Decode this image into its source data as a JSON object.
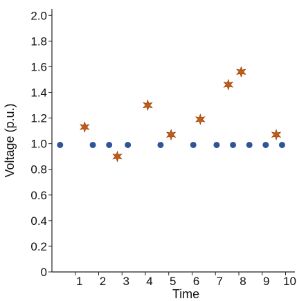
{
  "chart_data": {
    "type": "scatter",
    "xlabel": "Time",
    "ylabel": "Voltage (p.u.)",
    "xlim": [
      0,
      10.4
    ],
    "ylim": [
      0,
      2.05
    ],
    "x_ticks": [
      1,
      2,
      3,
      4,
      5,
      6,
      7,
      8,
      9,
      10
    ],
    "y_ticks": [
      0,
      0.2,
      0.4,
      0.6,
      0.8,
      1.0,
      1.2,
      1.4,
      1.6,
      1.8,
      2.0
    ],
    "y_tick_labels": [
      "0",
      "0.2",
      "0.4",
      "0.6",
      "0.8",
      "1.0",
      "1.2",
      "1.4",
      "1.6",
      "1.8",
      "2.0"
    ],
    "grid": false,
    "series": [
      {
        "marker": "circle",
        "color": "#2f5597",
        "points": [
          {
            "x": 0.35,
            "y": 0.99
          },
          {
            "x": 1.75,
            "y": 0.99
          },
          {
            "x": 2.45,
            "y": 0.99
          },
          {
            "x": 3.25,
            "y": 0.99
          },
          {
            "x": 4.65,
            "y": 0.99
          },
          {
            "x": 6.05,
            "y": 0.99
          },
          {
            "x": 7.05,
            "y": 0.99
          },
          {
            "x": 7.75,
            "y": 0.99
          },
          {
            "x": 8.45,
            "y": 0.99
          },
          {
            "x": 9.15,
            "y": 0.99
          },
          {
            "x": 9.85,
            "y": 0.99
          }
        ]
      },
      {
        "marker": "star",
        "color": "#c55a11",
        "points": [
          {
            "x": 1.4,
            "y": 1.13
          },
          {
            "x": 2.8,
            "y": 0.9
          },
          {
            "x": 4.1,
            "y": 1.3
          },
          {
            "x": 5.1,
            "y": 1.07
          },
          {
            "x": 6.35,
            "y": 1.19
          },
          {
            "x": 7.55,
            "y": 1.46
          },
          {
            "x": 8.1,
            "y": 1.56
          },
          {
            "x": 9.6,
            "y": 1.07
          }
        ]
      }
    ]
  }
}
